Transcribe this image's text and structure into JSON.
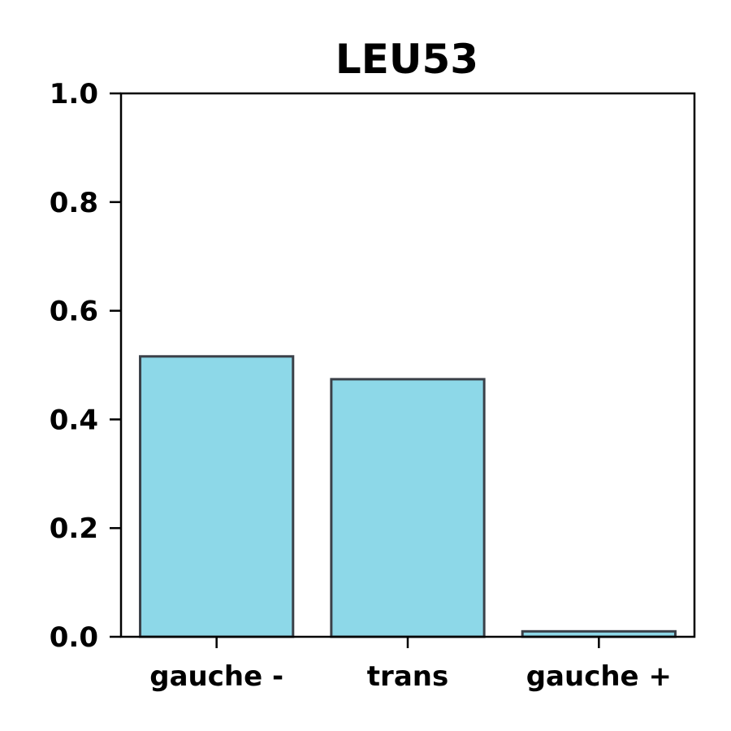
{
  "chart_data": {
    "type": "bar",
    "title": "LEU53",
    "xlabel": "",
    "ylabel": "",
    "categories": [
      "gauche -",
      "trans",
      "gauche +"
    ],
    "values": [
      0.516,
      0.474,
      0.01
    ],
    "ylim": [
      0,
      1.0
    ],
    "yticks": [
      "0.0",
      "0.2",
      "0.4",
      "0.6",
      "0.8",
      "1.0"
    ],
    "grid": false,
    "legend": "none",
    "colors": {
      "bar_fill": "#8dd8e8",
      "bar_edge": "#3a4048",
      "axis": "#000000"
    }
  }
}
